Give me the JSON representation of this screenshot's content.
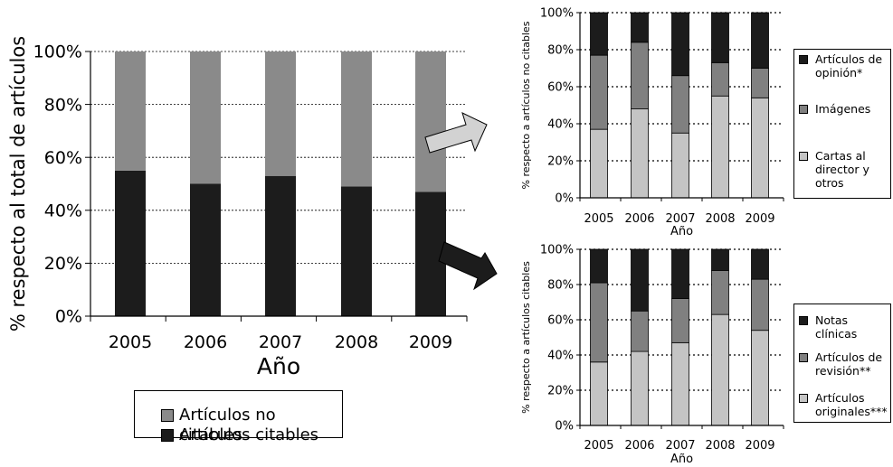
{
  "colors": {
    "dark": "#1c1c1c",
    "mid_gray": "#8a8a8a",
    "mid_gray2": "#808080",
    "light_gray": "#c4c4c4",
    "arrow_fill": "#d2d2d2",
    "arrow_dark": "#1c1c1c"
  },
  "chart_data": [
    {
      "type": "bar",
      "stacked": true,
      "percent_stacked": true,
      "title": "",
      "xlabel": "Año",
      "ylabel": "% respecto al total de artículos",
      "categories": [
        "2005",
        "2006",
        "2007",
        "2008",
        "2009"
      ],
      "ylim": [
        0,
        100
      ],
      "yticks": [
        "0%",
        "20%",
        "40%",
        "60%",
        "80%",
        "100%"
      ],
      "grid": "horizontal dotted",
      "legend_placement": "bottom",
      "series": [
        {
          "name": "Artículos citables",
          "color": "dark",
          "values": [
            55,
            50,
            53,
            49,
            47
          ]
        },
        {
          "name": "Artículos no citables",
          "color": "mid_gray",
          "values": [
            45,
            50,
            47,
            51,
            53
          ]
        }
      ],
      "legend_order": [
        "Artículos no citables",
        "Artículos citables"
      ]
    },
    {
      "type": "bar",
      "stacked": true,
      "percent_stacked": true,
      "title": "",
      "xlabel": "Año",
      "ylabel": "% respecto a artículos no citables",
      "categories": [
        "2005",
        "2006",
        "2007",
        "2008",
        "2009"
      ],
      "ylim": [
        0,
        100
      ],
      "yticks": [
        "0%",
        "20%",
        "40%",
        "60%",
        "80%",
        "100%"
      ],
      "grid": "horizontal dotted",
      "legend_placement": "right",
      "series": [
        {
          "name": "Cartas al\ndirector y\notros",
          "color": "light_gray",
          "values": [
            37,
            48,
            35,
            55,
            54
          ]
        },
        {
          "name": "Imágenes",
          "color": "mid_gray2",
          "values": [
            40,
            36,
            31,
            18,
            16
          ]
        },
        {
          "name": "Artículos de\nopinión*",
          "color": "dark",
          "values": [
            23,
            16,
            34,
            27,
            30
          ]
        }
      ],
      "legend_order": [
        "Artículos de\nopinión*",
        "Imágenes",
        "Cartas al\ndirector y\notros"
      ]
    },
    {
      "type": "bar",
      "stacked": true,
      "percent_stacked": true,
      "title": "",
      "xlabel": "Año",
      "ylabel": "% respecto a artículos citables",
      "categories": [
        "2005",
        "2006",
        "2007",
        "2008",
        "2009"
      ],
      "ylim": [
        0,
        100
      ],
      "yticks": [
        "0%",
        "20%",
        "40%",
        "60%",
        "80%",
        "100%"
      ],
      "grid": "horizontal dotted",
      "legend_placement": "right",
      "series": [
        {
          "name": "Artículos\noriginales***",
          "color": "light_gray",
          "values": [
            36,
            42,
            47,
            63,
            54
          ]
        },
        {
          "name": "Artículos de\nrevisión**",
          "color": "mid_gray2",
          "values": [
            45,
            23,
            25,
            25,
            29
          ]
        },
        {
          "name": "Notas clínicas",
          "color": "dark",
          "values": [
            19,
            35,
            28,
            12,
            17
          ]
        }
      ],
      "legend_order": [
        "Notas clínicas",
        "Artículos de\nrevisión**",
        "Artículos\noriginales***"
      ]
    }
  ]
}
